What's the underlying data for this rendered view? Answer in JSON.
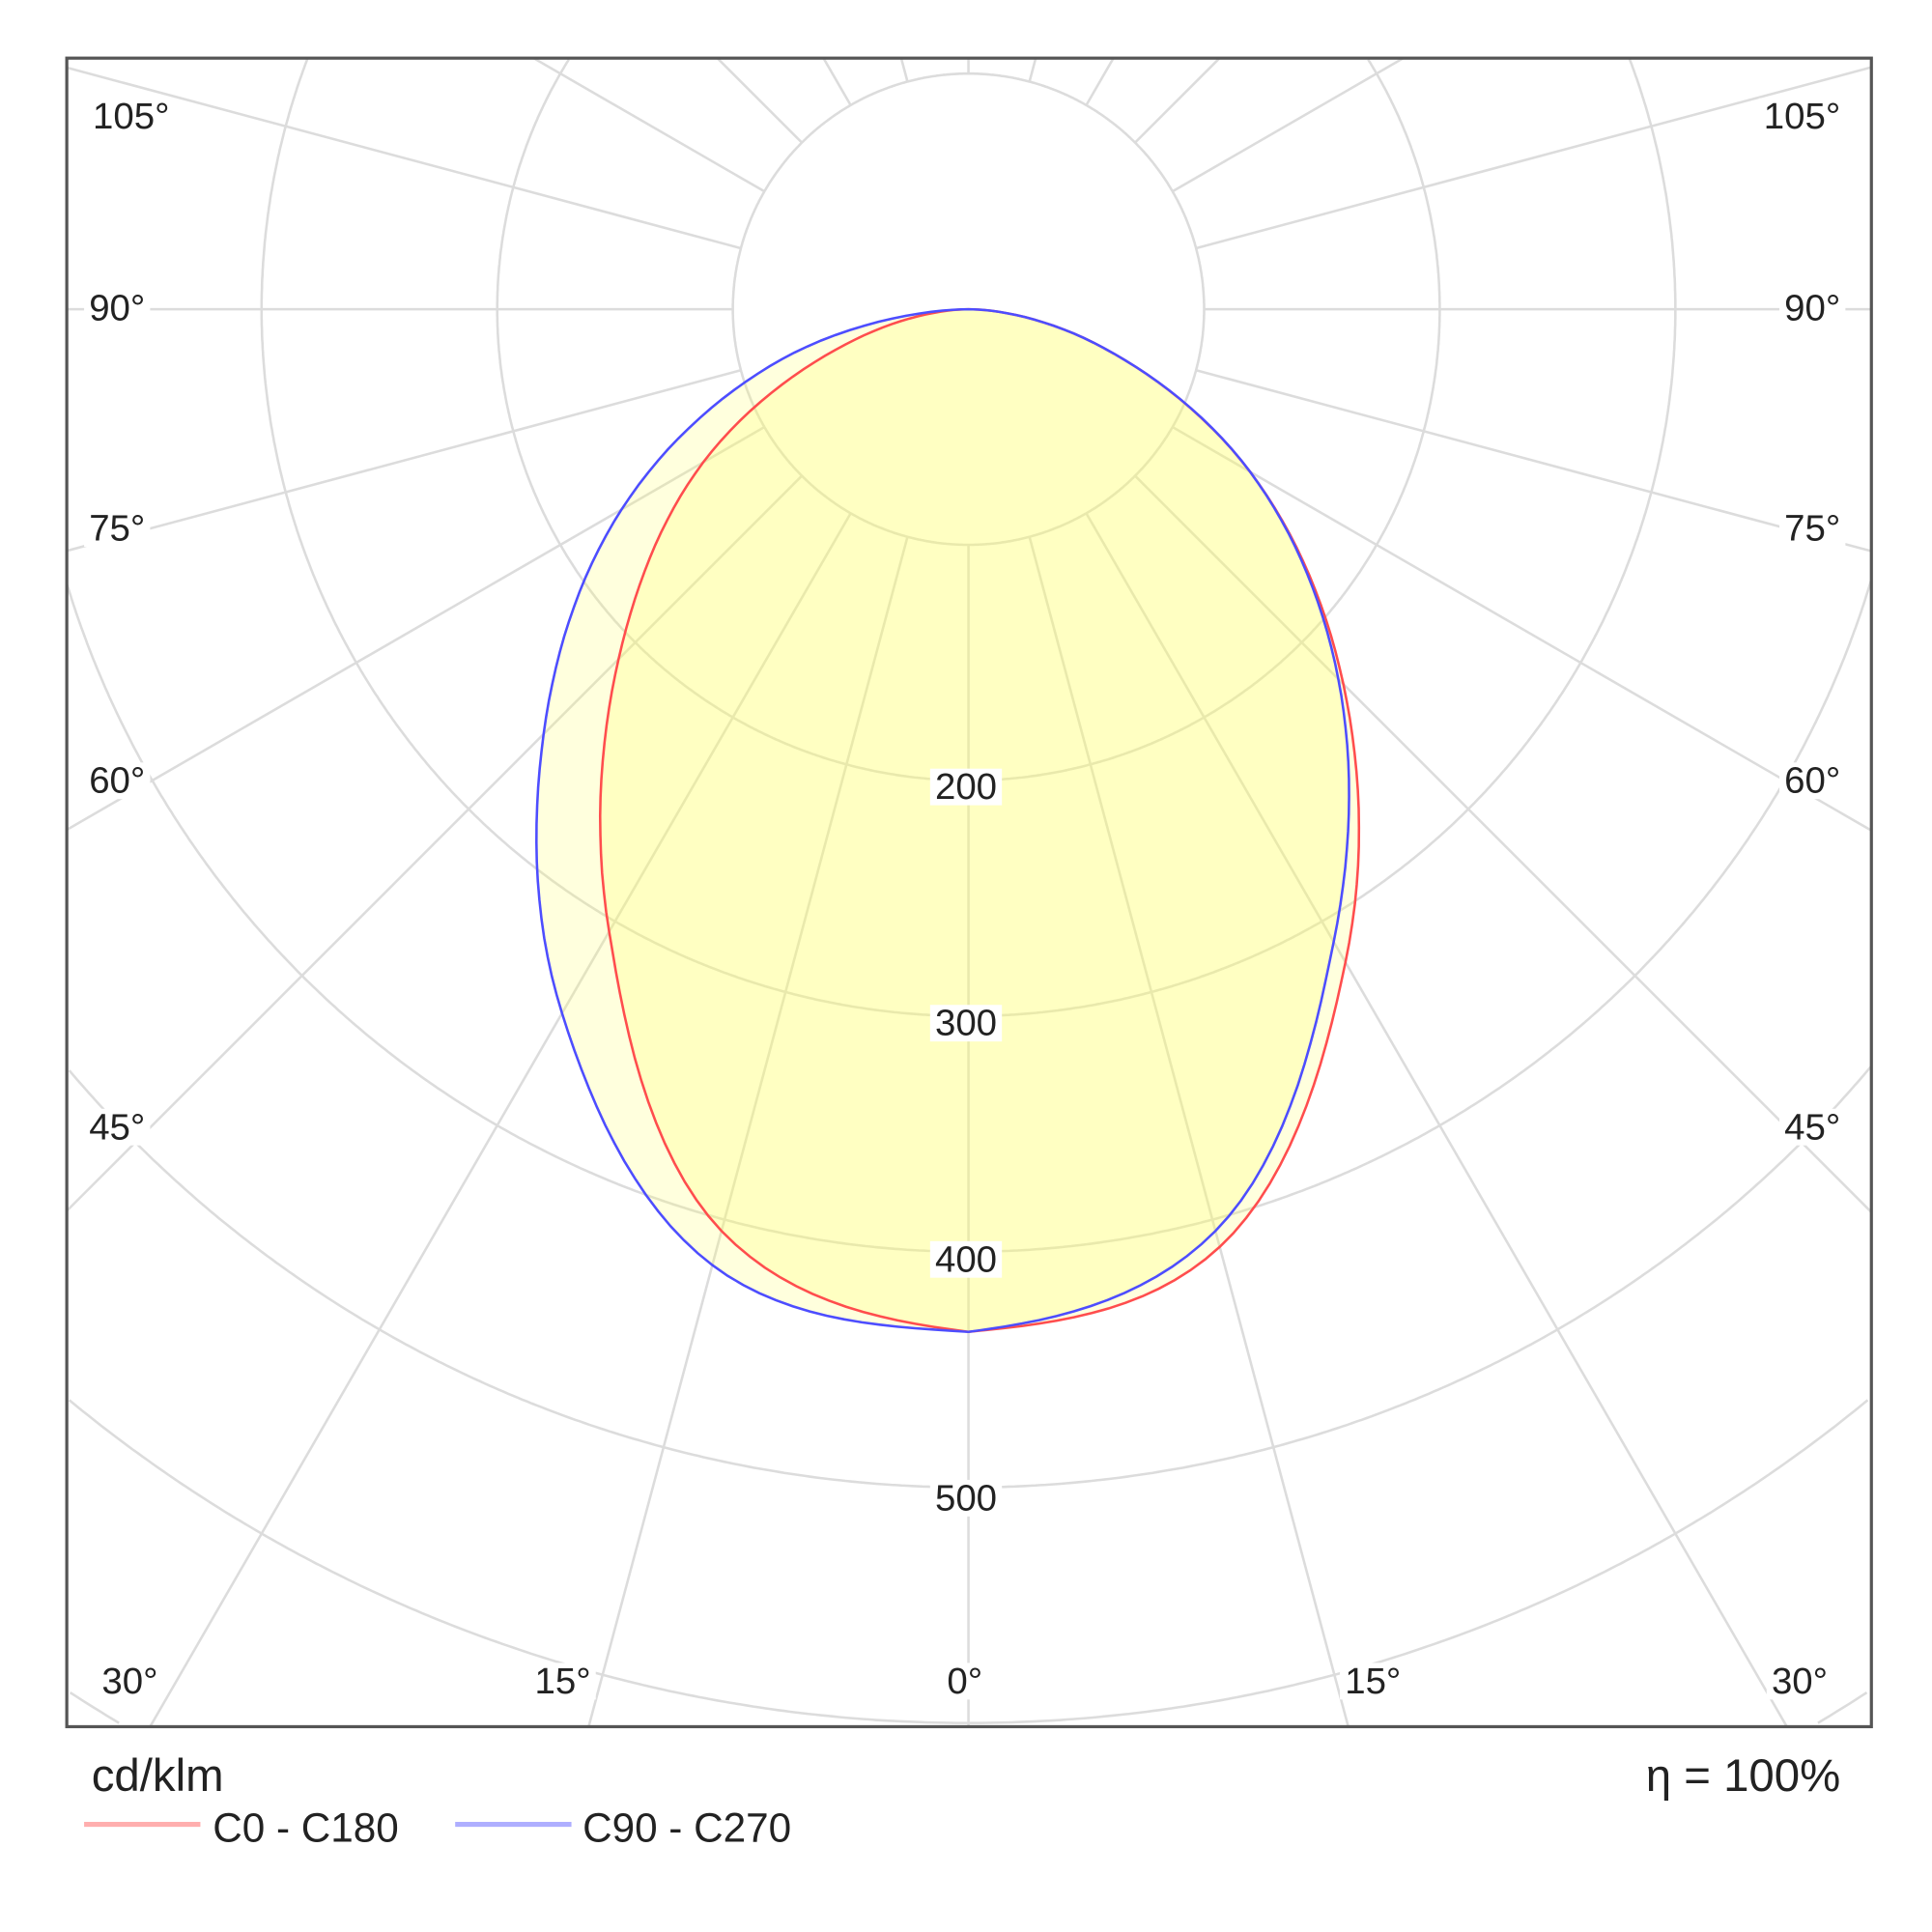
{
  "chart_data": {
    "type": "polar",
    "unit_label": "cd/klm",
    "efficiency_label": "η = 100%",
    "radial_ticks": [
      100,
      200,
      300,
      400,
      500,
      600,
      700
    ],
    "radial_tick_labels": [
      "200",
      "300",
      "400",
      "500"
    ],
    "angle_step_deg": 15,
    "side_angle_labels": [
      "105°",
      "90°",
      "75°",
      "60°",
      "45°"
    ],
    "bottom_angle_labels": [
      "30°",
      "15°",
      "0°",
      "15°",
      "30°"
    ],
    "grid": true,
    "legend_placement": "bottom-left",
    "angles_deg": [
      0,
      15,
      30,
      45,
      60,
      75,
      90
    ],
    "series": [
      {
        "name": "C0 - C180",
        "color": "#ff4d4d",
        "left_values": [
          434,
          405,
          305,
          210,
          130,
          50,
          0
        ],
        "right_values": [
          434,
          412,
          320,
          225,
          138,
          55,
          0
        ]
      },
      {
        "name": "C90 - C270",
        "color": "#4d4dff",
        "left_values": [
          434,
          420,
          345,
          255,
          170,
          82,
          0
        ],
        "right_values": [
          434,
          405,
          310,
          222,
          138,
          55,
          0
        ]
      }
    ],
    "fill_color": "#ffff66"
  }
}
